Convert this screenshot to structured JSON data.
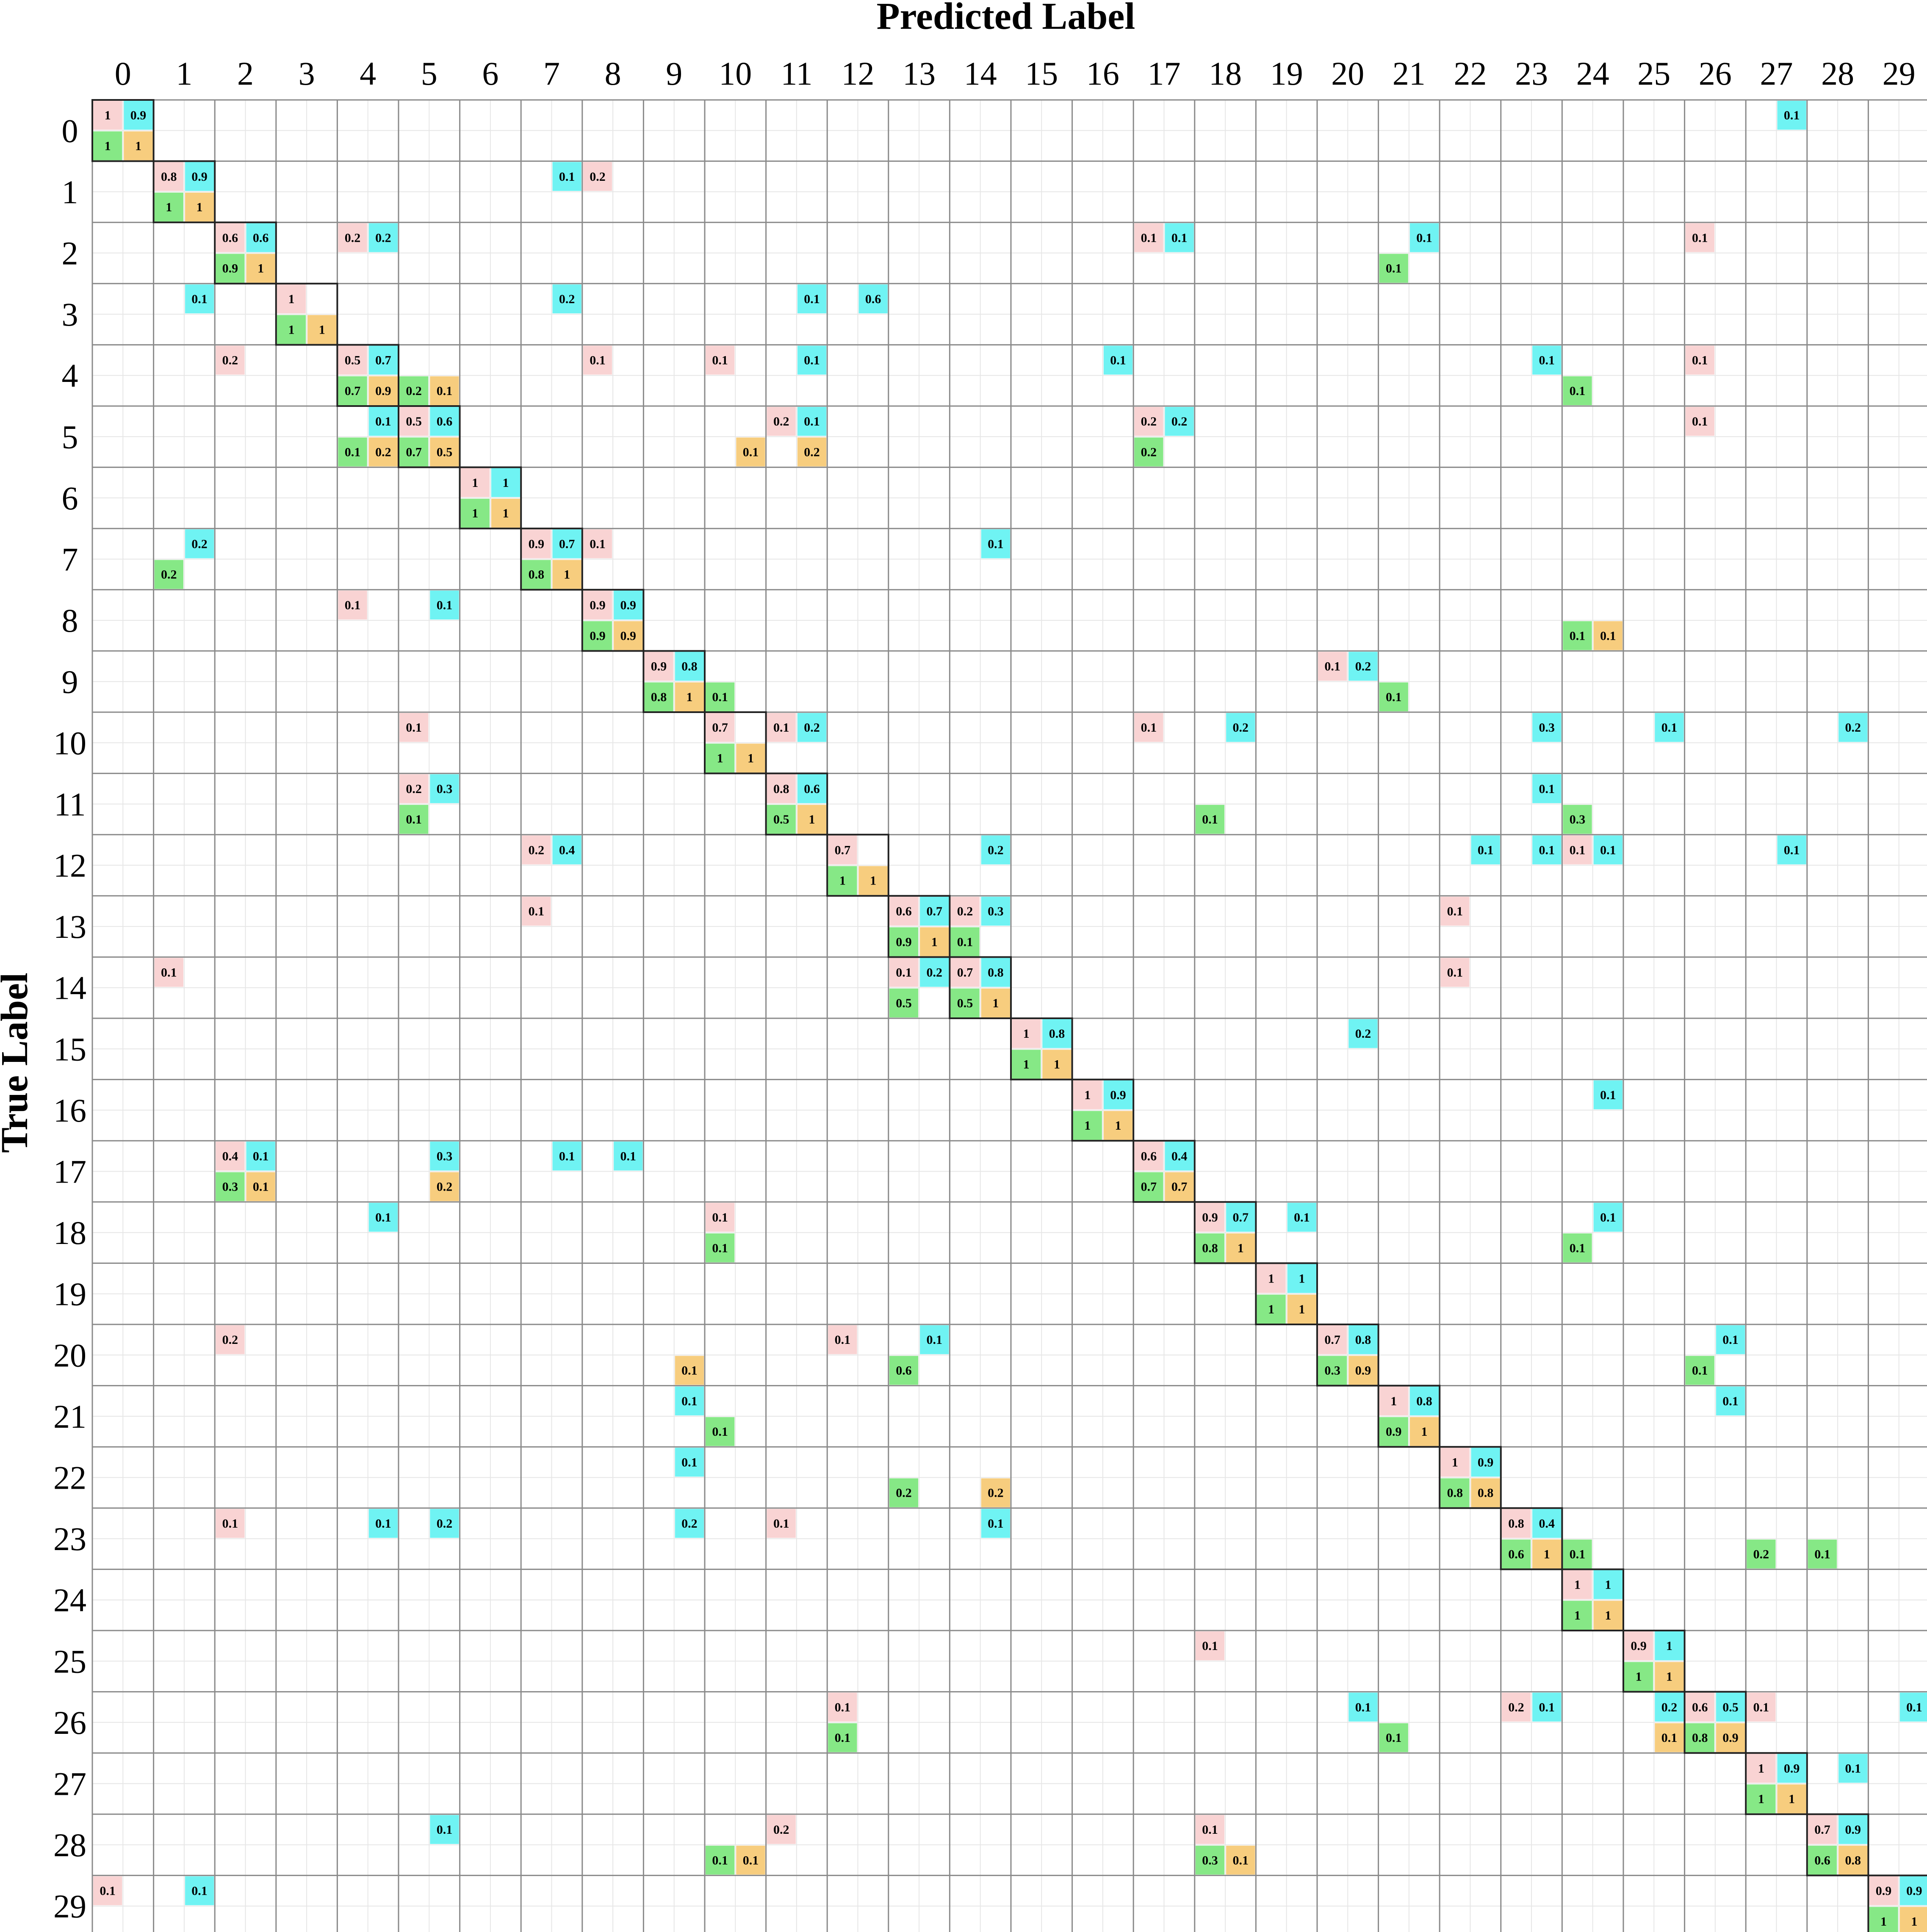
{
  "chart_data": {
    "type": "heatmap",
    "title": "",
    "xlabel": "Predicted Label",
    "ylabel": "True Label",
    "x_categories": [
      "0",
      "1",
      "2",
      "3",
      "4",
      "5",
      "6",
      "7",
      "8",
      "9",
      "10",
      "11",
      "12",
      "13",
      "14",
      "15",
      "16",
      "17",
      "18",
      "19",
      "20",
      "21",
      "22",
      "23",
      "24",
      "25",
      "26",
      "27",
      "28",
      "29"
    ],
    "y_categories": [
      "0",
      "1",
      "2",
      "3",
      "4",
      "5",
      "6",
      "7",
      "8",
      "9",
      "10",
      "11",
      "12",
      "13",
      "14",
      "15",
      "16",
      "17",
      "18",
      "19",
      "20",
      "21",
      "22",
      "23",
      "24",
      "25",
      "26",
      "27",
      "28",
      "29"
    ],
    "grid": true,
    "legend": "none",
    "sub_cell_layout": [
      "top-left",
      "top-right",
      "bottom-left",
      "bottom-right"
    ],
    "series": [
      {
        "key": "a",
        "position": "top-left",
        "color": "#f9d3d3"
      },
      {
        "key": "b",
        "position": "top-right",
        "color": "#6ff3f3"
      },
      {
        "key": "c",
        "position": "bottom-left",
        "color": "#86e886"
      },
      {
        "key": "d",
        "position": "bottom-right",
        "color": "#f7cd7e"
      }
    ],
    "cells": [
      {
        "row": 0,
        "col": 0,
        "a": "1",
        "b": "0.9",
        "c": "1",
        "d": "1"
      },
      {
        "row": 0,
        "col": 27,
        "b": "0.1"
      },
      {
        "row": 1,
        "col": 1,
        "a": "0.8",
        "b": "0.9",
        "c": "1",
        "d": "1"
      },
      {
        "row": 1,
        "col": 7,
        "b": "0.1"
      },
      {
        "row": 1,
        "col": 8,
        "a": "0.2"
      },
      {
        "row": 2,
        "col": 2,
        "a": "0.6",
        "b": "0.6",
        "c": "0.9",
        "d": "1"
      },
      {
        "row": 2,
        "col": 4,
        "a": "0.2",
        "b": "0.2"
      },
      {
        "row": 2,
        "col": 17,
        "a": "0.1",
        "b": "0.1"
      },
      {
        "row": 2,
        "col": 21,
        "b": "0.1",
        "c": "0.1"
      },
      {
        "row": 2,
        "col": 26,
        "a": "0.1"
      },
      {
        "row": 3,
        "col": 1,
        "b": "0.1"
      },
      {
        "row": 3,
        "col": 3,
        "a": "1",
        "c": "1",
        "d": "1"
      },
      {
        "row": 3,
        "col": 7,
        "b": "0.2"
      },
      {
        "row": 3,
        "col": 11,
        "b": "0.1"
      },
      {
        "row": 3,
        "col": 12,
        "b": "0.6"
      },
      {
        "row": 4,
        "col": 2,
        "a": "0.2"
      },
      {
        "row": 4,
        "col": 4,
        "a": "0.5",
        "b": "0.7",
        "c": "0.7",
        "d": "0.9"
      },
      {
        "row": 4,
        "col": 5,
        "c": "0.2",
        "d": "0.1"
      },
      {
        "row": 4,
        "col": 8,
        "a": "0.1"
      },
      {
        "row": 4,
        "col": 10,
        "a": "0.1"
      },
      {
        "row": 4,
        "col": 11,
        "b": "0.1"
      },
      {
        "row": 4,
        "col": 16,
        "b": "0.1"
      },
      {
        "row": 4,
        "col": 23,
        "b": "0.1"
      },
      {
        "row": 4,
        "col": 24,
        "c": "0.1"
      },
      {
        "row": 4,
        "col": 26,
        "a": "0.1"
      },
      {
        "row": 5,
        "col": 4,
        "b": "0.1",
        "c": "0.1",
        "d": "0.2"
      },
      {
        "row": 5,
        "col": 5,
        "a": "0.5",
        "b": "0.6",
        "c": "0.7",
        "d": "0.5"
      },
      {
        "row": 5,
        "col": 10,
        "d": "0.1"
      },
      {
        "row": 5,
        "col": 11,
        "a": "0.2",
        "b": "0.1",
        "d": "0.2"
      },
      {
        "row": 5,
        "col": 17,
        "a": "0.2",
        "b": "0.2",
        "c": "0.2"
      },
      {
        "row": 5,
        "col": 26,
        "a": "0.1"
      },
      {
        "row": 6,
        "col": 6,
        "a": "1",
        "b": "1",
        "c": "1",
        "d": "1"
      },
      {
        "row": 7,
        "col": 1,
        "b": "0.2",
        "c": "0.2"
      },
      {
        "row": 7,
        "col": 7,
        "a": "0.9",
        "b": "0.7",
        "c": "0.8",
        "d": "1"
      },
      {
        "row": 7,
        "col": 8,
        "a": "0.1"
      },
      {
        "row": 7,
        "col": 14,
        "b": "0.1"
      },
      {
        "row": 8,
        "col": 4,
        "a": "0.1"
      },
      {
        "row": 8,
        "col": 5,
        "b": "0.1"
      },
      {
        "row": 8,
        "col": 8,
        "a": "0.9",
        "b": "0.9",
        "c": "0.9",
        "d": "0.9"
      },
      {
        "row": 8,
        "col": 24,
        "c": "0.1",
        "d": "0.1"
      },
      {
        "row": 9,
        "col": 9,
        "a": "0.9",
        "b": "0.8",
        "c": "0.8",
        "d": "1"
      },
      {
        "row": 9,
        "col": 10,
        "c": "0.1"
      },
      {
        "row": 9,
        "col": 20,
        "a": "0.1",
        "b": "0.2"
      },
      {
        "row": 9,
        "col": 21,
        "c": "0.1"
      },
      {
        "row": 10,
        "col": 5,
        "a": "0.1"
      },
      {
        "row": 10,
        "col": 10,
        "a": "0.7",
        "c": "1",
        "d": "1"
      },
      {
        "row": 10,
        "col": 11,
        "a": "0.1",
        "b": "0.2"
      },
      {
        "row": 10,
        "col": 17,
        "a": "0.1"
      },
      {
        "row": 10,
        "col": 18,
        "b": "0.2"
      },
      {
        "row": 10,
        "col": 23,
        "b": "0.3"
      },
      {
        "row": 10,
        "col": 25,
        "b": "0.1"
      },
      {
        "row": 10,
        "col": 28,
        "b": "0.2"
      },
      {
        "row": 11,
        "col": 5,
        "a": "0.2",
        "b": "0.3",
        "c": "0.1"
      },
      {
        "row": 11,
        "col": 11,
        "a": "0.8",
        "b": "0.6",
        "c": "0.5",
        "d": "1"
      },
      {
        "row": 11,
        "col": 18,
        "c": "0.1"
      },
      {
        "row": 11,
        "col": 23,
        "b": "0.1"
      },
      {
        "row": 11,
        "col": 24,
        "c": "0.3"
      },
      {
        "row": 12,
        "col": 7,
        "a": "0.2",
        "b": "0.4"
      },
      {
        "row": 12,
        "col": 12,
        "a": "0.7",
        "c": "1",
        "d": "1"
      },
      {
        "row": 12,
        "col": 14,
        "b": "0.2"
      },
      {
        "row": 12,
        "col": 22,
        "b": "0.1"
      },
      {
        "row": 12,
        "col": 23,
        "b": "0.1"
      },
      {
        "row": 12,
        "col": 24,
        "a": "0.1",
        "b": "0.1"
      },
      {
        "row": 12,
        "col": 27,
        "b": "0.1"
      },
      {
        "row": 13,
        "col": 7,
        "a": "0.1"
      },
      {
        "row": 13,
        "col": 13,
        "a": "0.6",
        "b": "0.7",
        "c": "0.9",
        "d": "1"
      },
      {
        "row": 13,
        "col": 14,
        "a": "0.2",
        "b": "0.3",
        "c": "0.1"
      },
      {
        "row": 13,
        "col": 22,
        "a": "0.1"
      },
      {
        "row": 14,
        "col": 1,
        "a": "0.1"
      },
      {
        "row": 14,
        "col": 13,
        "a": "0.1",
        "b": "0.2",
        "c": "0.5"
      },
      {
        "row": 14,
        "col": 14,
        "a": "0.7",
        "b": "0.8",
        "c": "0.5",
        "d": "1"
      },
      {
        "row": 14,
        "col": 22,
        "a": "0.1"
      },
      {
        "row": 15,
        "col": 15,
        "a": "1",
        "b": "0.8",
        "c": "1",
        "d": "1"
      },
      {
        "row": 15,
        "col": 20,
        "b": "0.2"
      },
      {
        "row": 16,
        "col": 16,
        "a": "1",
        "b": "0.9",
        "c": "1",
        "d": "1"
      },
      {
        "row": 16,
        "col": 24,
        "b": "0.1"
      },
      {
        "row": 17,
        "col": 2,
        "a": "0.4",
        "b": "0.1",
        "c": "0.3",
        "d": "0.1"
      },
      {
        "row": 17,
        "col": 5,
        "b": "0.3",
        "d": "0.2"
      },
      {
        "row": 17,
        "col": 7,
        "b": "0.1"
      },
      {
        "row": 17,
        "col": 8,
        "b": "0.1"
      },
      {
        "row": 17,
        "col": 17,
        "a": "0.6",
        "b": "0.4",
        "c": "0.7",
        "d": "0.7"
      },
      {
        "row": 18,
        "col": 4,
        "b": "0.1"
      },
      {
        "row": 18,
        "col": 10,
        "a": "0.1",
        "c": "0.1"
      },
      {
        "row": 18,
        "col": 18,
        "a": "0.9",
        "b": "0.7",
        "c": "0.8",
        "d": "1"
      },
      {
        "row": 18,
        "col": 19,
        "b": "0.1"
      },
      {
        "row": 18,
        "col": 24,
        "b": "0.1",
        "c": "0.1"
      },
      {
        "row": 19,
        "col": 19,
        "a": "1",
        "b": "1",
        "c": "1",
        "d": "1"
      },
      {
        "row": 20,
        "col": 2,
        "a": "0.2"
      },
      {
        "row": 20,
        "col": 9,
        "d": "0.1"
      },
      {
        "row": 20,
        "col": 12,
        "a": "0.1"
      },
      {
        "row": 20,
        "col": 13,
        "b": "0.1",
        "c": "0.6"
      },
      {
        "row": 20,
        "col": 20,
        "a": "0.7",
        "b": "0.8",
        "c": "0.3",
        "d": "0.9"
      },
      {
        "row": 20,
        "col": 26,
        "b": "0.1",
        "c": "0.1"
      },
      {
        "row": 21,
        "col": 9,
        "b": "0.1"
      },
      {
        "row": 21,
        "col": 10,
        "c": "0.1"
      },
      {
        "row": 21,
        "col": 21,
        "a": "1",
        "b": "0.8",
        "c": "0.9",
        "d": "1"
      },
      {
        "row": 21,
        "col": 26,
        "b": "0.1"
      },
      {
        "row": 22,
        "col": 9,
        "b": "0.1"
      },
      {
        "row": 22,
        "col": 13,
        "c": "0.2"
      },
      {
        "row": 22,
        "col": 14,
        "d": "0.2"
      },
      {
        "row": 22,
        "col": 22,
        "a": "1",
        "b": "0.9",
        "c": "0.8",
        "d": "0.8"
      },
      {
        "row": 23,
        "col": 2,
        "a": "0.1"
      },
      {
        "row": 23,
        "col": 4,
        "b": "0.1"
      },
      {
        "row": 23,
        "col": 5,
        "b": "0.2"
      },
      {
        "row": 23,
        "col": 9,
        "b": "0.2"
      },
      {
        "row": 23,
        "col": 11,
        "a": "0.1"
      },
      {
        "row": 23,
        "col": 14,
        "b": "0.1"
      },
      {
        "row": 23,
        "col": 23,
        "a": "0.8",
        "b": "0.4",
        "c": "0.6",
        "d": "1"
      },
      {
        "row": 23,
        "col": 24,
        "c": "0.1"
      },
      {
        "row": 23,
        "col": 27,
        "c": "0.2"
      },
      {
        "row": 23,
        "col": 28,
        "c": "0.1"
      },
      {
        "row": 24,
        "col": 24,
        "a": "1",
        "b": "1",
        "c": "1",
        "d": "1"
      },
      {
        "row": 25,
        "col": 18,
        "a": "0.1"
      },
      {
        "row": 25,
        "col": 25,
        "a": "0.9",
        "b": "1",
        "c": "1",
        "d": "1"
      },
      {
        "row": 26,
        "col": 12,
        "a": "0.1",
        "c": "0.1"
      },
      {
        "row": 26,
        "col": 20,
        "b": "0.1"
      },
      {
        "row": 26,
        "col": 21,
        "c": "0.1"
      },
      {
        "row": 26,
        "col": 23,
        "a": "0.2",
        "b": "0.1"
      },
      {
        "row": 26,
        "col": 25,
        "b": "0.2",
        "d": "0.1"
      },
      {
        "row": 26,
        "col": 26,
        "a": "0.6",
        "b": "0.5",
        "c": "0.8",
        "d": "0.9"
      },
      {
        "row": 26,
        "col": 27,
        "a": "0.1"
      },
      {
        "row": 26,
        "col": 29,
        "b": "0.1"
      },
      {
        "row": 27,
        "col": 27,
        "a": "1",
        "b": "0.9",
        "c": "1",
        "d": "1"
      },
      {
        "row": 27,
        "col": 28,
        "b": "0.1"
      },
      {
        "row": 28,
        "col": 5,
        "b": "0.1"
      },
      {
        "row": 28,
        "col": 10,
        "c": "0.1",
        "d": "0.1"
      },
      {
        "row": 28,
        "col": 11,
        "a": "0.2"
      },
      {
        "row": 28,
        "col": 18,
        "a": "0.1",
        "c": "0.3",
        "d": "0.1"
      },
      {
        "row": 28,
        "col": 28,
        "a": "0.7",
        "b": "0.9",
        "c": "0.6",
        "d": "0.8"
      },
      {
        "row": 29,
        "col": 0,
        "a": "0.1"
      },
      {
        "row": 29,
        "col": 1,
        "b": "0.1"
      },
      {
        "row": 29,
        "col": 29,
        "a": "0.9",
        "b": "0.9",
        "c": "1",
        "d": "1"
      }
    ]
  }
}
